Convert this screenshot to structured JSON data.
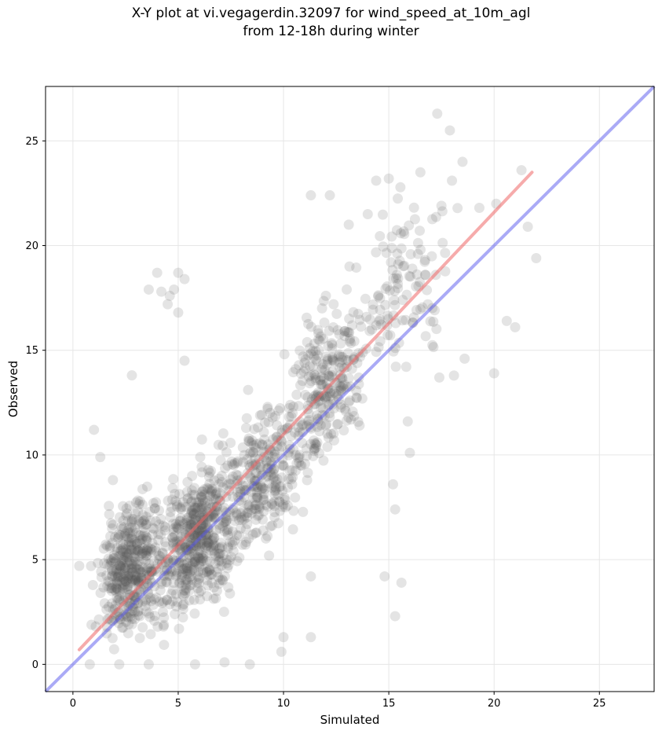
{
  "chart_data": {
    "type": "scatter",
    "title_line1": "X-Y plot at vi.vegagerdin.32097 for wind_speed_at_10m_agl",
    "title_line2": "from 12-18h during winter",
    "xlabel": "Simulated",
    "ylabel": "Observed",
    "xlim": [
      -1.3,
      27.6
    ],
    "ylim": [
      -1.3,
      27.6
    ],
    "xticks": [
      0,
      5,
      10,
      15,
      20,
      25
    ],
    "yticks": [
      0,
      5,
      10,
      15,
      20,
      25
    ],
    "grid": true,
    "point_color": "#555555",
    "identity_line": {
      "from": [
        -1.3,
        -1.3
      ],
      "to": [
        27.6,
        27.6
      ],
      "color": "#5555ee"
    },
    "fit_line": {
      "from": [
        0.3,
        0.7
      ],
      "to": [
        21.8,
        23.5
      ],
      "color": "#ee6666"
    },
    "point_clusters": [
      {
        "x": [
          0.5,
          5.0
        ],
        "y": [
          0.0,
          9.0
        ],
        "count": 420
      },
      {
        "x": [
          3.0,
          9.0
        ],
        "y": [
          1.0,
          11.0
        ],
        "count": 520
      },
      {
        "x": [
          6.0,
          12.0
        ],
        "y": [
          4.0,
          14.0
        ],
        "count": 260
      },
      {
        "x": [
          9.0,
          15.0
        ],
        "y": [
          8.0,
          19.0
        ],
        "count": 260
      },
      {
        "x": [
          12.0,
          19.0
        ],
        "y": [
          12.0,
          24.0
        ],
        "count": 120
      }
    ],
    "outliers": [
      [
        17.3,
        26.3
      ],
      [
        17.9,
        25.5
      ],
      [
        18.5,
        24.0
      ],
      [
        21.3,
        23.6
      ],
      [
        16.5,
        23.5
      ],
      [
        15.0,
        23.2
      ],
      [
        14.4,
        23.1
      ],
      [
        18.0,
        23.1
      ],
      [
        17.5,
        21.9
      ],
      [
        20.1,
        22.0
      ],
      [
        19.3,
        21.8
      ],
      [
        21.6,
        20.9
      ],
      [
        22.0,
        19.4
      ],
      [
        20.6,
        16.4
      ],
      [
        21.0,
        16.1
      ],
      [
        20.0,
        13.9
      ],
      [
        18.6,
        14.6
      ],
      [
        17.4,
        13.7
      ],
      [
        15.9,
        11.6
      ],
      [
        16.0,
        10.1
      ],
      [
        15.2,
        8.6
      ],
      [
        15.3,
        7.4
      ],
      [
        14.8,
        4.2
      ],
      [
        15.6,
        3.9
      ],
      [
        15.3,
        2.3
      ],
      [
        11.3,
        1.3
      ],
      [
        10.0,
        1.3
      ],
      [
        9.9,
        0.6
      ],
      [
        11.3,
        4.2
      ],
      [
        5.0,
        18.7
      ],
      [
        4.0,
        18.7
      ],
      [
        5.3,
        18.4
      ],
      [
        4.8,
        17.9
      ],
      [
        3.6,
        17.9
      ],
      [
        4.6,
        17.6
      ],
      [
        4.2,
        17.8
      ],
      [
        4.5,
        17.2
      ],
      [
        5.0,
        16.8
      ],
      [
        5.3,
        14.5
      ],
      [
        2.8,
        13.8
      ],
      [
        1.0,
        11.2
      ],
      [
        1.3,
        9.9
      ],
      [
        1.9,
        8.8
      ],
      [
        0.3,
        4.7
      ],
      [
        0.8,
        0.0
      ],
      [
        2.2,
        0.0
      ],
      [
        3.6,
        0.0
      ],
      [
        5.8,
        0.0
      ],
      [
        7.2,
        0.1
      ],
      [
        8.4,
        0.0
      ],
      [
        12.2,
        22.4
      ],
      [
        11.3,
        22.4
      ],
      [
        13.1,
        21.0
      ],
      [
        14.0,
        21.5
      ]
    ]
  }
}
